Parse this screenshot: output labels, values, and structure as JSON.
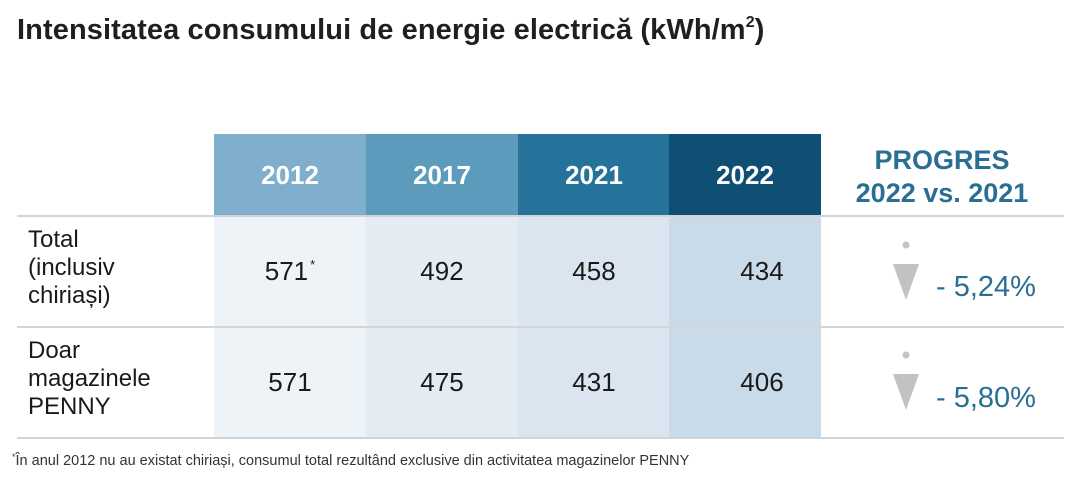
{
  "title": "Intensitatea consumului de energie electrică (kWh/m",
  "title_sup": "2",
  "title_end": ")",
  "chart_data": {
    "type": "table",
    "title": "Intensitatea consumului de energie electrică (kWh/m²)",
    "columns": [
      "2012",
      "2017",
      "2021",
      "2022"
    ],
    "column_colors": [
      "#7fafcc",
      "#5c9bbb",
      "#25739a",
      "#0f4f73"
    ],
    "column_bg_colors": [
      "#eef3f8",
      "#e4ecf3",
      "#dbe5ef",
      "#c9dbe9"
    ],
    "progress_header_line1": "PROGRES",
    "progress_header_line2": "2022 vs. 2021",
    "rows": [
      {
        "label_lines": [
          "Total",
          "(inclusiv",
          "chiriași)"
        ],
        "values": [
          "571",
          "492",
          "458",
          "434"
        ],
        "first_value_mark": "*",
        "progress": "- 5,24%"
      },
      {
        "label_lines": [
          "Doar",
          "magazinele",
          "PENNY"
        ],
        "values": [
          "571",
          "475",
          "431",
          "406"
        ],
        "progress": "- 5,80%"
      }
    ]
  },
  "footnote_mark": "*",
  "footnote": "În anul 2012 nu au existat chiriași, consumul total rezultând exclusive din activitatea magazinelor PENNY",
  "colors": {
    "accent": "#2a6f93",
    "arrow": "#c2c2c2"
  }
}
